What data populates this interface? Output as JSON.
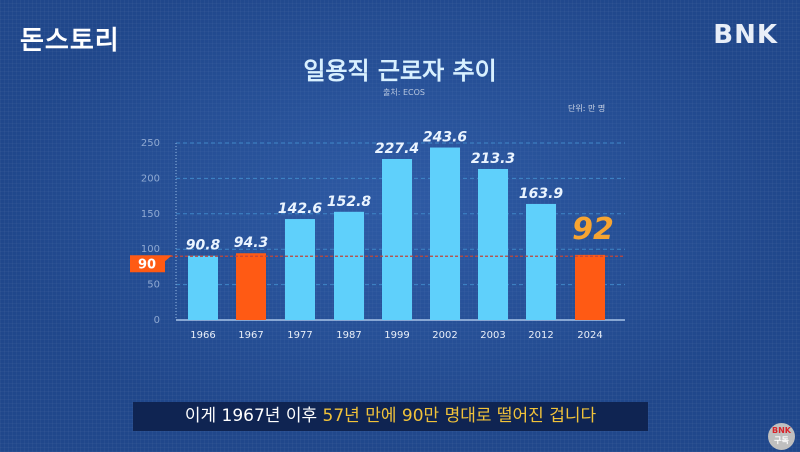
{
  "logo": "돈스토리",
  "brand": "BNK",
  "subscribe_badge": {
    "line1": "BNK",
    "line2": "구독"
  },
  "subtitle": {
    "part1": "이게 1967년 이후 ",
    "part2": "57년 만에 90만 명대로 떨어진 겁니다"
  },
  "chart_data": {
    "type": "bar",
    "title": "일용직 근로자 추이",
    "source": "출처: ECOS",
    "unit": "단위: 만 명",
    "categories": [
      "1966",
      "1967",
      "1977",
      "1987",
      "1999",
      "2002",
      "2003",
      "2012",
      "2024"
    ],
    "values": [
      90.8,
      94.3,
      142.6,
      152.8,
      227.4,
      243.6,
      213.3,
      163.9,
      92
    ],
    "highlighted": [
      "1967",
      "2024"
    ],
    "ylim": [
      0,
      250
    ],
    "yticks": [
      0,
      50,
      100,
      150,
      200,
      250
    ],
    "grid": true,
    "reference_line": {
      "value": 90,
      "label": "90"
    },
    "colors": {
      "bar": "#5fd0fb",
      "highlight": "#ff5a14",
      "highlight_label": "#f7a431",
      "reference": "#c0463a"
    }
  }
}
